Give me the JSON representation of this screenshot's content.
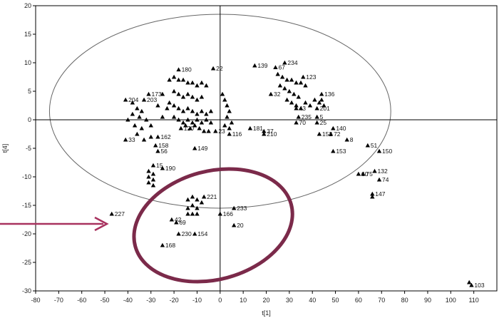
{
  "chart_data": {
    "type": "scatter",
    "xlabel": "t[1]",
    "ylabel": "t[4]",
    "xlim": [
      -80,
      120
    ],
    "ylim": [
      -30,
      20
    ],
    "x_ticks": [
      -80,
      -70,
      -60,
      -50,
      -40,
      -30,
      -20,
      -10,
      0,
      10,
      20,
      30,
      40,
      50,
      60,
      70,
      80,
      90,
      100,
      110
    ],
    "y_ticks": [
      20,
      15,
      10,
      5,
      0,
      -5,
      -10,
      -15,
      -20,
      -25,
      -30
    ],
    "grid": false,
    "marker_color": "#000000",
    "ellipse": {
      "cx": 0,
      "cy": 1.5,
      "rx": 74,
      "ry": 17
    },
    "ellipse_color": "#666666",
    "highlight": {
      "shape": "ellipse",
      "color": "#7b2a4a",
      "cx": -3,
      "cy": -18.5,
      "rx": 35,
      "ry": 9.5,
      "rotation_deg": -15
    },
    "arrow": {
      "color": "#a8325f",
      "points_to": "highlight"
    },
    "points": [
      {
        "label": "139",
        "x": 15,
        "y": 9.5
      },
      {
        "label": "67",
        "x": 24,
        "y": 9.2
      },
      {
        "label": "234",
        "x": 28,
        "y": 10
      },
      {
        "label": "22",
        "x": -3,
        "y": 9
      },
      {
        "label": "180",
        "x": -18,
        "y": 8.8
      },
      {
        "label": "123",
        "x": 36,
        "y": 7.5
      },
      {
        "label": "32",
        "x": 22,
        "y": 4.5
      },
      {
        "label": "43",
        "x": 33,
        "y": 2
      },
      {
        "label": "235",
        "x": 34,
        "y": 0.5
      },
      {
        "label": "5",
        "x": 42,
        "y": 0.5
      },
      {
        "label": "201",
        "x": 42,
        "y": 2
      },
      {
        "label": "136",
        "x": 44,
        "y": 4.5
      },
      {
        "label": "70",
        "x": 33,
        "y": -0.5
      },
      {
        "label": "25",
        "x": 42,
        "y": -0.5
      },
      {
        "label": "140",
        "x": 49,
        "y": -1.5
      },
      {
        "label": "72",
        "x": 48,
        "y": -2.5
      },
      {
        "label": "152",
        "x": 43,
        "y": -2.5
      },
      {
        "label": "8",
        "x": 55,
        "y": -3.5
      },
      {
        "label": "153",
        "x": 49,
        "y": -5.5
      },
      {
        "label": "51",
        "x": 64,
        "y": -4.5
      },
      {
        "label": "150",
        "x": 69,
        "y": -5.5
      },
      {
        "label": "132",
        "x": 67,
        "y": -9
      },
      {
        "label": "60",
        "x": 60,
        "y": -9.5
      },
      {
        "label": "75",
        "x": 62,
        "y": -9.5
      },
      {
        "label": "74",
        "x": 69,
        "y": -10.5
      },
      {
        "label": "147",
        "x": 66,
        "y": -13
      },
      {
        "label": "181",
        "x": 13,
        "y": -1.5
      },
      {
        "label": "37",
        "x": 19,
        "y": -2
      },
      {
        "label": "210",
        "x": 19,
        "y": -2.5
      },
      {
        "label": "116",
        "x": 4,
        "y": -2.5
      },
      {
        "label": "204",
        "x": -41,
        "y": 3.5
      },
      {
        "label": "173",
        "x": -31,
        "y": 4.5
      },
      {
        "label": "203",
        "x": -33,
        "y": 3.5
      },
      {
        "label": "33",
        "x": -41,
        "y": -3.5
      },
      {
        "label": "162",
        "x": -27,
        "y": -3
      },
      {
        "label": "158",
        "x": -28,
        "y": -4.5
      },
      {
        "label": "56",
        "x": -27,
        "y": -5.5
      },
      {
        "label": "149",
        "x": -11,
        "y": -5
      },
      {
        "label": "120",
        "x": -17,
        "y": -1.5
      },
      {
        "label": "23",
        "x": -2,
        "y": -2
      },
      {
        "label": "15",
        "x": -29,
        "y": -8
      },
      {
        "label": "190",
        "x": -25,
        "y": -8.5
      },
      {
        "label": "227",
        "x": -47,
        "y": -16.5
      },
      {
        "label": "221",
        "x": -7,
        "y": -13.5
      },
      {
        "label": "233",
        "x": 6,
        "y": -15.5
      },
      {
        "label": "166",
        "x": 0,
        "y": -16.5
      },
      {
        "label": "42",
        "x": -21,
        "y": -17.5
      },
      {
        "label": "69",
        "x": -19,
        "y": -18
      },
      {
        "label": "20",
        "x": 6,
        "y": -18.5
      },
      {
        "label": "230",
        "x": -18,
        "y": -20
      },
      {
        "label": "154",
        "x": -11,
        "y": -20
      },
      {
        "label": "168",
        "x": -25,
        "y": -22
      },
      {
        "label": "103",
        "x": 109,
        "y": -29
      }
    ],
    "unlabeled_points": [
      [
        -38,
        3
      ],
      [
        -36,
        2
      ],
      [
        -34,
        1.5
      ],
      [
        -38,
        1
      ],
      [
        -35,
        0.5
      ],
      [
        -40,
        0
      ],
      [
        -32,
        0
      ],
      [
        -37,
        -1
      ],
      [
        -34,
        -1.5
      ],
      [
        -30,
        -1
      ],
      [
        -36,
        -2.5
      ],
      [
        -33,
        -3.5
      ],
      [
        -30,
        -3
      ],
      [
        -25,
        0.5
      ],
      [
        -23,
        2
      ],
      [
        -27,
        2.5
      ],
      [
        -25,
        4.5
      ],
      [
        -22,
        7
      ],
      [
        -20,
        7.5
      ],
      [
        -18,
        7
      ],
      [
        -16,
        7
      ],
      [
        -14,
        6.5
      ],
      [
        -12,
        6.5
      ],
      [
        -10,
        6
      ],
      [
        -8,
        6.5
      ],
      [
        -6,
        6
      ],
      [
        -20,
        5
      ],
      [
        -18,
        4.5
      ],
      [
        -16,
        4
      ],
      [
        -14,
        4.5
      ],
      [
        -12,
        4
      ],
      [
        -10,
        3.5
      ],
      [
        -8,
        4
      ],
      [
        -22,
        3
      ],
      [
        -20,
        2.5
      ],
      [
        -18,
        2
      ],
      [
        -16,
        1.5
      ],
      [
        -14,
        2
      ],
      [
        -12,
        1.5
      ],
      [
        -10,
        1
      ],
      [
        -8,
        1.5
      ],
      [
        -6,
        1
      ],
      [
        -4,
        1.5
      ],
      [
        -20,
        0.5
      ],
      [
        -18,
        0
      ],
      [
        -16,
        -0.5
      ],
      [
        -14,
        0
      ],
      [
        -12,
        -0.5
      ],
      [
        -10,
        0
      ],
      [
        -8,
        -0.5
      ],
      [
        -6,
        0
      ],
      [
        -4,
        -0.5
      ],
      [
        -15,
        -1
      ],
      [
        -13,
        -1.5
      ],
      [
        -11,
        -1
      ],
      [
        -9,
        -1.5
      ],
      [
        -7,
        -2
      ],
      [
        -5,
        -2
      ],
      [
        1,
        4.5
      ],
      [
        2,
        3.5
      ],
      [
        3,
        2.5
      ],
      [
        4,
        1.5
      ],
      [
        3,
        0.5
      ],
      [
        5,
        -0.5
      ],
      [
        2,
        -1
      ],
      [
        4,
        -1.5
      ],
      [
        25,
        8
      ],
      [
        27,
        7.5
      ],
      [
        29,
        7
      ],
      [
        31,
        7
      ],
      [
        33,
        6.5
      ],
      [
        35,
        6.5
      ],
      [
        37,
        6
      ],
      [
        26,
        6
      ],
      [
        28,
        5.5
      ],
      [
        30,
        5
      ],
      [
        32,
        4.5
      ],
      [
        34,
        4
      ],
      [
        29,
        3.5
      ],
      [
        31,
        3
      ],
      [
        33,
        2.5
      ],
      [
        35,
        2
      ],
      [
        37,
        3
      ],
      [
        39,
        2.5
      ],
      [
        41,
        3.5
      ],
      [
        43,
        3
      ],
      [
        45,
        2.5
      ],
      [
        44,
        3.5
      ],
      [
        -31,
        -9
      ],
      [
        -29,
        -9.5
      ],
      [
        -31,
        -10
      ],
      [
        -29,
        -10.5
      ],
      [
        -31,
        -11
      ],
      [
        -29,
        -11.5
      ],
      [
        -14,
        -14
      ],
      [
        -12,
        -13.5
      ],
      [
        -10,
        -14
      ],
      [
        -8,
        -14.5
      ],
      [
        -12,
        -15
      ],
      [
        -10,
        -15.5
      ],
      [
        -14,
        -15.5
      ],
      [
        -12,
        -16.5
      ],
      [
        -10,
        -16.5
      ],
      [
        -14,
        -16.5
      ],
      [
        66,
        -13.5
      ],
      [
        108,
        -28.5
      ]
    ]
  }
}
